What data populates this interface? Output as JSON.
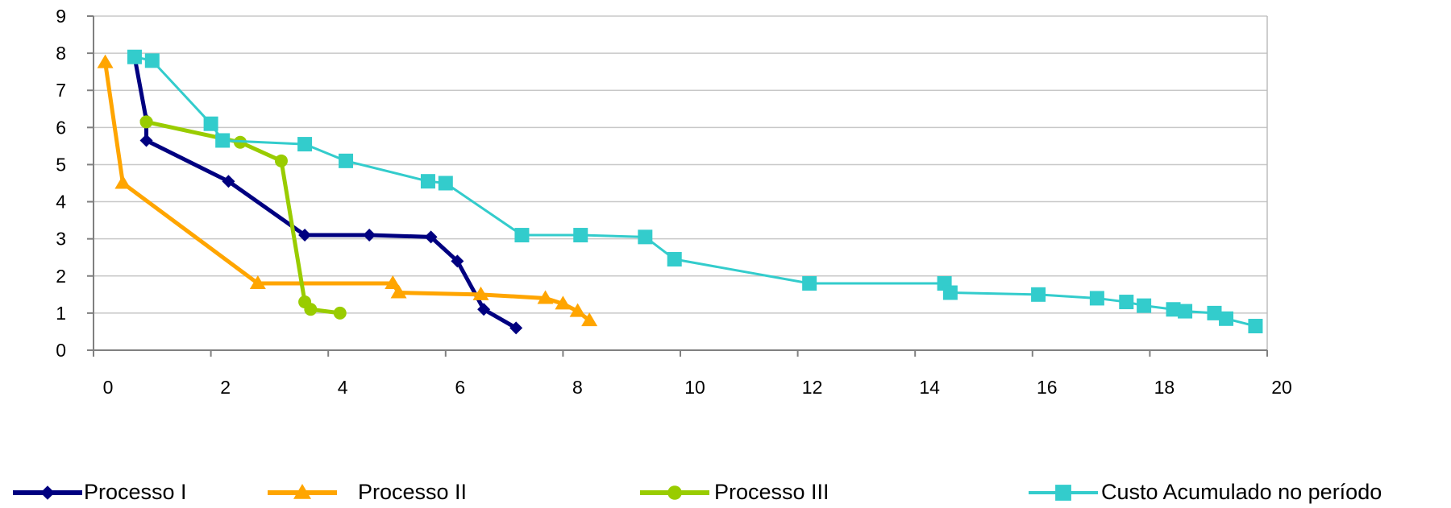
{
  "chart_data": {
    "type": "line",
    "title": "",
    "xlabel": "",
    "ylabel": "",
    "xlim": [
      0,
      20
    ],
    "ylim": [
      0,
      9
    ],
    "x_ticks": [
      "0",
      "2",
      "4",
      "6",
      "8",
      "10",
      "12",
      "14",
      "16",
      "18",
      "20"
    ],
    "y_ticks": [
      "0",
      "1",
      "2",
      "3",
      "4",
      "5",
      "6",
      "7",
      "8",
      "9"
    ],
    "grid": "horizontal",
    "legend_position": "bottom",
    "series": [
      {
        "name": "Processo I",
        "color": "#000080",
        "marker": "diamond",
        "points": [
          [
            0.7,
            7.9
          ],
          [
            0.9,
            6.2
          ],
          [
            0.9,
            5.65
          ],
          [
            2.3,
            4.55
          ],
          [
            3.6,
            3.1
          ],
          [
            4.7,
            3.1
          ],
          [
            5.75,
            3.05
          ],
          [
            6.2,
            2.4
          ],
          [
            6.65,
            1.1
          ],
          [
            7.2,
            0.6
          ]
        ]
      },
      {
        "name": "Processo II",
        "color": "#FFA500",
        "marker": "triangle",
        "points": [
          [
            0.2,
            7.75
          ],
          [
            0.5,
            4.5
          ],
          [
            2.8,
            1.8
          ],
          [
            5.1,
            1.8
          ],
          [
            5.2,
            1.55
          ],
          [
            6.6,
            1.5
          ],
          [
            7.7,
            1.4
          ],
          [
            8.0,
            1.25
          ],
          [
            8.25,
            1.05
          ],
          [
            8.45,
            0.8
          ]
        ]
      },
      {
        "name": "Processo III",
        "color": "#99CC00",
        "marker": "circle",
        "points": [
          [
            0.9,
            6.15
          ],
          [
            2.5,
            5.6
          ],
          [
            3.2,
            5.1
          ],
          [
            3.6,
            1.3
          ],
          [
            3.7,
            1.1
          ],
          [
            4.2,
            1.0
          ]
        ]
      },
      {
        "name": "Custo Acumulado no período",
        "color": "#33CCCC",
        "marker": "square",
        "points": [
          [
            0.7,
            7.9
          ],
          [
            1.0,
            7.8
          ],
          [
            2.0,
            6.1
          ],
          [
            2.2,
            5.65
          ],
          [
            3.6,
            5.55
          ],
          [
            4.3,
            5.1
          ],
          [
            5.7,
            4.55
          ],
          [
            6.0,
            4.5
          ],
          [
            7.3,
            3.1
          ],
          [
            8.3,
            3.1
          ],
          [
            9.4,
            3.05
          ],
          [
            9.9,
            2.45
          ],
          [
            12.2,
            1.8
          ],
          [
            14.5,
            1.8
          ],
          [
            14.6,
            1.55
          ],
          [
            16.1,
            1.5
          ],
          [
            17.1,
            1.4
          ],
          [
            17.6,
            1.3
          ],
          [
            17.9,
            1.2
          ],
          [
            18.4,
            1.1
          ],
          [
            18.6,
            1.05
          ],
          [
            19.1,
            1.0
          ],
          [
            19.3,
            0.85
          ],
          [
            19.8,
            0.65
          ]
        ]
      }
    ]
  }
}
